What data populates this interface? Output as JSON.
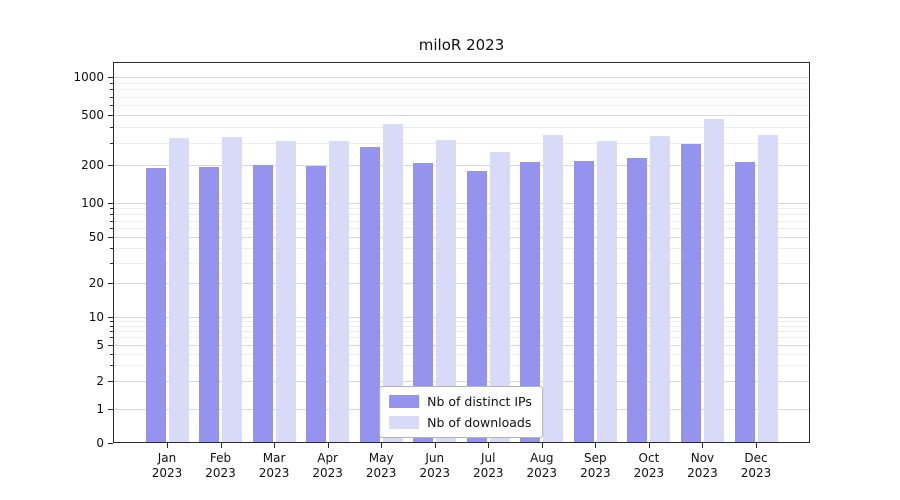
{
  "title": "miloR 2023",
  "colors": {
    "ips_bar": "#9494ef",
    "downloads_bar": "#d9d9f8",
    "grid_major": "#d9d9d9",
    "grid_minor": "#ededed",
    "axis": "#2a2a2a",
    "background": "#ffffff"
  },
  "legend": {
    "items": [
      {
        "label": "Nb of distinct IPs"
      },
      {
        "label": "Nb of downloads"
      }
    ]
  },
  "chart_data": {
    "type": "bar",
    "title": "miloR 2023",
    "scale": "symlog",
    "categories": [
      "Jan",
      "Feb",
      "Mar",
      "Apr",
      "May",
      "Jun",
      "Jul",
      "Aug",
      "Sep",
      "Oct",
      "Nov",
      "Dec"
    ],
    "year_label": "2023",
    "series": [
      {
        "name": "Nb of distinct IPs",
        "values": [
          190,
          193,
          201,
          197,
          278,
          208,
          178,
          213,
          214,
          228,
          293,
          213
        ]
      },
      {
        "name": "Nb of downloads",
        "values": [
          331,
          336,
          308,
          312,
          421,
          318,
          252,
          349,
          311,
          342,
          462,
          344
        ]
      }
    ],
    "y_ticks": [
      0,
      1,
      2,
      5,
      10,
      20,
      50,
      100,
      200,
      500,
      1000
    ],
    "y_minor_ticks": [
      3,
      4,
      6,
      7,
      8,
      9,
      30,
      40,
      60,
      70,
      80,
      90,
      300,
      400,
      600,
      700,
      800,
      900
    ],
    "ylim": [
      0,
      1300
    ],
    "xlabel": "",
    "ylabel": "",
    "grid": true,
    "legend_position": "lower center"
  }
}
